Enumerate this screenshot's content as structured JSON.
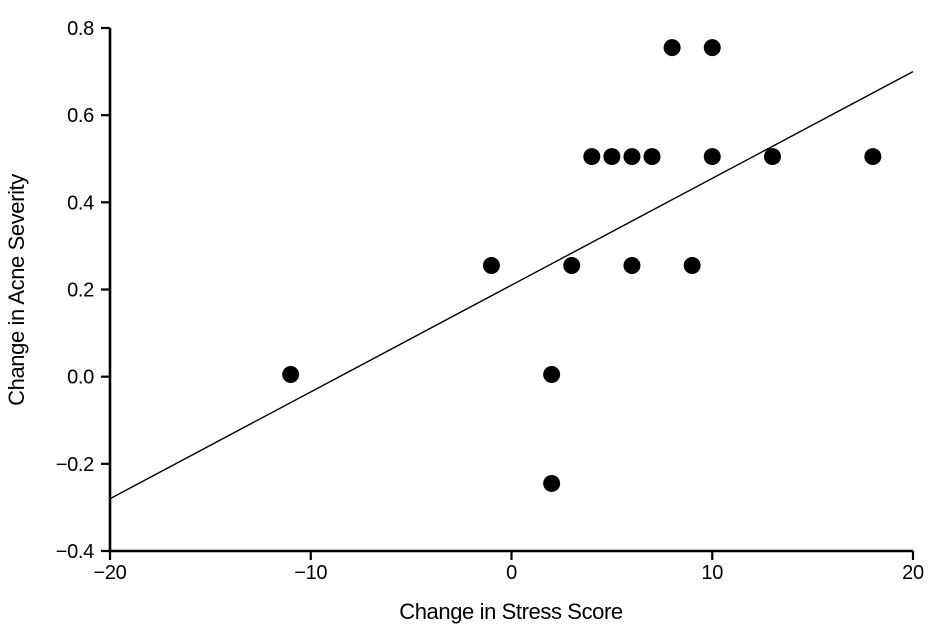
{
  "chart_data": {
    "type": "scatter",
    "title": "",
    "xlabel": "Change in Stress Score",
    "ylabel": "Change in Acne Severity",
    "xlim": [
      -20,
      20
    ],
    "ylim": [
      -0.4,
      0.8
    ],
    "xticks": [
      -20,
      -10,
      0,
      10,
      20
    ],
    "xtick_labels": [
      "−20",
      "−10",
      "0",
      "10",
      "20"
    ],
    "yticks": [
      -0.4,
      -0.2,
      0.0,
      0.2,
      0.4,
      0.6,
      0.8
    ],
    "ytick_labels": [
      "−0.4",
      "−0.2",
      "0.0",
      "0.2",
      "0.4",
      "0.6",
      "0.8"
    ],
    "grid": false,
    "legend": false,
    "points": [
      {
        "x": -11,
        "y": 0.005
      },
      {
        "x": -1,
        "y": 0.255
      },
      {
        "x": 2,
        "y": -0.245
      },
      {
        "x": 2,
        "y": 0.005
      },
      {
        "x": 3,
        "y": 0.255
      },
      {
        "x": 4,
        "y": 0.505
      },
      {
        "x": 5,
        "y": 0.505
      },
      {
        "x": 6,
        "y": 0.255
      },
      {
        "x": 6,
        "y": 0.505
      },
      {
        "x": 7,
        "y": 0.505
      },
      {
        "x": 8,
        "y": 0.755
      },
      {
        "x": 9,
        "y": 0.255
      },
      {
        "x": 10,
        "y": 0.505
      },
      {
        "x": 10,
        "y": 0.755
      },
      {
        "x": 13,
        "y": 0.505
      },
      {
        "x": 18,
        "y": 0.505
      }
    ],
    "trend_line": {
      "x1": -20,
      "y1": -0.28,
      "x2": 20,
      "y2": 0.7
    },
    "marker": {
      "shape": "circle",
      "radius_px": 8.5,
      "color": "#000000"
    },
    "line_color": "#000000",
    "axis_color": "#000000",
    "background": "#ffffff"
  }
}
